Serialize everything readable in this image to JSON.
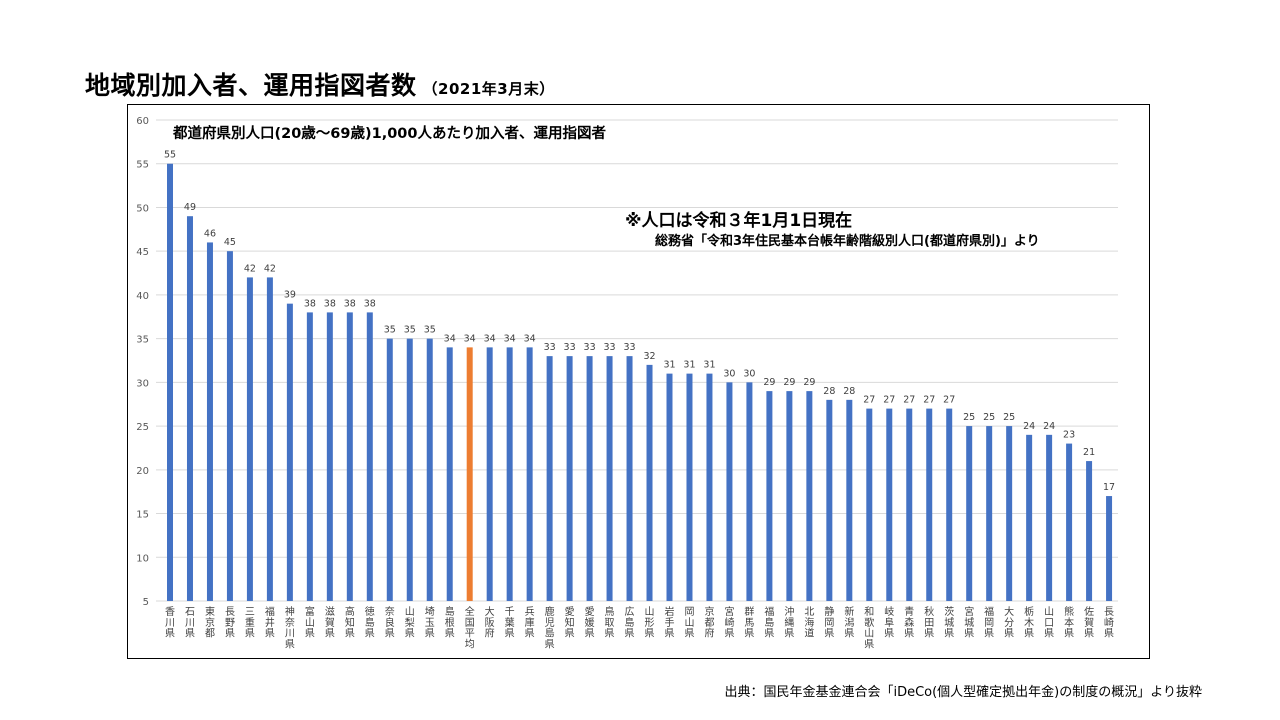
{
  "header": {
    "title": "地域別加入者、運用指図者数",
    "subtitle": "（2021年3月末）"
  },
  "footer": {
    "source": "出典：国民年金基金連合会「iDeCo(個人型確定拠出年金)の制度の概況」より抜粋"
  },
  "colors": {
    "bar": "#4472c4",
    "highlight": "#ed7d31",
    "grid": "#d9d9d9",
    "text": "#000000"
  },
  "chart_data": {
    "type": "bar",
    "title": "都道府県別人口(20歳～69歳)1,000人あたり加入者、運用指図者",
    "note": "※人口は令和３年1月1日現在",
    "note_source": "総務省「令和3年住民基本台帳年齢階級別人口(都道府県別)」より",
    "ylim": [
      5,
      60
    ],
    "yticks": [
      5,
      10,
      15,
      20,
      25,
      30,
      35,
      40,
      45,
      50,
      55,
      60
    ],
    "grid": true,
    "highlight_category": "全国平均",
    "categories": [
      "香川県",
      "石川県",
      "東京都",
      "長野県",
      "三重県",
      "福井県",
      "神奈川県",
      "富山県",
      "滋賀県",
      "高知県",
      "徳島県",
      "奈良県",
      "山梨県",
      "埼玉県",
      "島根県",
      "全国平均",
      "大阪府",
      "千葉県",
      "兵庫県",
      "鹿児島県",
      "愛知県",
      "愛媛県",
      "鳥取県",
      "広島県",
      "山形県",
      "岩手県",
      "岡山県",
      "京都府",
      "宮崎県",
      "群馬県",
      "福島県",
      "沖縄県",
      "北海道",
      "静岡県",
      "新潟県",
      "和歌山県",
      "岐阜県",
      "青森県",
      "秋田県",
      "茨城県",
      "宮城県",
      "福岡県",
      "大分県",
      "栃木県",
      "山口県",
      "熊本県",
      "佐賀県",
      "長崎県"
    ],
    "values": [
      55,
      49,
      46,
      45,
      42,
      42,
      39,
      38,
      38,
      38,
      38,
      35,
      35,
      35,
      34,
      34,
      34,
      34,
      34,
      33,
      33,
      33,
      33,
      33,
      32,
      31,
      31,
      31,
      30,
      30,
      29,
      29,
      29,
      28,
      28,
      27,
      27,
      27,
      27,
      27,
      25,
      25,
      25,
      24,
      24,
      23,
      21,
      17
    ]
  }
}
